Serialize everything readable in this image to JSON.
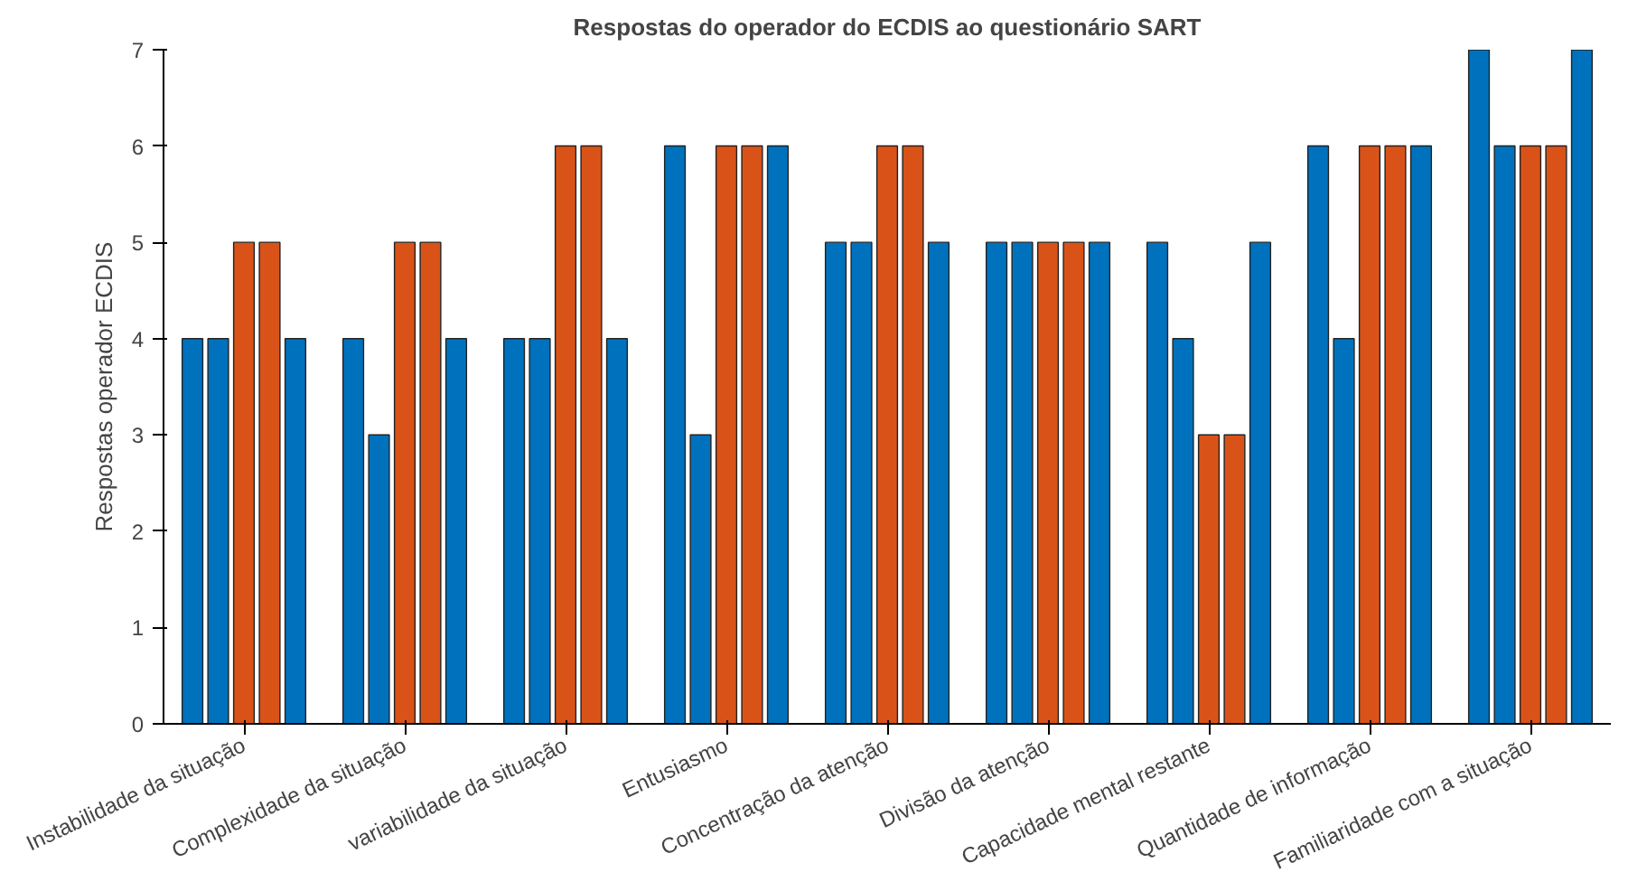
{
  "chart_data": {
    "type": "bar",
    "title": "Respostas do operador do ECDIS ao questionário SART",
    "ylabel": "Respostas operador ECDIS",
    "categories": [
      "Instabilidade da situação",
      "Complexidade da situação",
      "variabilidade da situação",
      "Entusiasmo",
      "Concentração da atenção",
      "Divisão da atenção",
      "Capacidade mental restante",
      "Quantidade de informação",
      "Familiaridade com a situação"
    ],
    "series": [
      {
        "color": "#0072bd",
        "values": [
          4,
          4,
          4,
          6,
          5,
          5,
          5,
          6,
          7
        ]
      },
      {
        "color": "#0072bd",
        "values": [
          4,
          3,
          4,
          3,
          5,
          5,
          4,
          4,
          6
        ]
      },
      {
        "color": "#d95319",
        "values": [
          5,
          5,
          6,
          6,
          6,
          5,
          3,
          6,
          6
        ]
      },
      {
        "color": "#d95319",
        "values": [
          5,
          5,
          6,
          6,
          6,
          5,
          3,
          6,
          6
        ]
      },
      {
        "color": "#0072bd",
        "values": [
          4,
          4,
          4,
          6,
          5,
          5,
          5,
          6,
          7
        ]
      }
    ],
    "ylim": [
      0,
      7
    ],
    "yticks": [
      0,
      1,
      2,
      3,
      4,
      5,
      6,
      7
    ],
    "grid": false
  }
}
